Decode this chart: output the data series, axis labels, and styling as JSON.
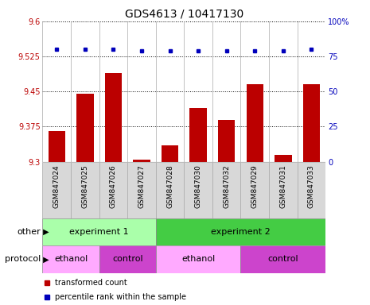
{
  "title": "GDS4613 / 10417130",
  "samples": [
    "GSM847024",
    "GSM847025",
    "GSM847026",
    "GSM847027",
    "GSM847028",
    "GSM847030",
    "GSM847032",
    "GSM847029",
    "GSM847031",
    "GSM847033"
  ],
  "bar_values": [
    9.365,
    9.445,
    9.49,
    9.305,
    9.335,
    9.415,
    9.39,
    9.465,
    9.315,
    9.465
  ],
  "blue_values": [
    80,
    80,
    80,
    79,
    79,
    79,
    79,
    79,
    79,
    80
  ],
  "bar_color": "#bb0000",
  "blue_color": "#0000bb",
  "ymin": 9.3,
  "ymax": 9.6,
  "yticks": [
    9.3,
    9.375,
    9.45,
    9.525,
    9.6
  ],
  "ytick_labels": [
    "9.3",
    "9.375",
    "9.45",
    "9.525",
    "9.6"
  ],
  "y2min": 0,
  "y2max": 100,
  "y2ticks": [
    0,
    25,
    50,
    75,
    100
  ],
  "y2tick_labels": [
    "0",
    "25",
    "50",
    "75",
    "100%"
  ],
  "grid_color": "#000000",
  "other_label": "other",
  "protocol_label": "protocol",
  "experiment1_label": "experiment 1",
  "experiment2_label": "experiment 2",
  "ethanol_label": "ethanol",
  "control_label": "control",
  "experiment1_color": "#aaffaa",
  "experiment2_color": "#44cc44",
  "ethanol1_color": "#ffaaff",
  "control1_color": "#cc44cc",
  "ethanol2_color": "#ffaaff",
  "control2_color": "#cc44cc",
  "legend_red_label": "transformed count",
  "legend_blue_label": "percentile rank within the sample",
  "bar_base": 9.3,
  "title_fontsize": 10,
  "tick_fontsize": 7,
  "sample_fontsize": 6.5,
  "annot_fontsize": 8,
  "bar_width": 0.6,
  "exp1_span": [
    0,
    4
  ],
  "exp2_span": [
    4,
    10
  ],
  "eth1_span": [
    0,
    2
  ],
  "ctl1_span": [
    2,
    4
  ],
  "eth2_span": [
    4,
    7
  ],
  "ctl2_span": [
    7,
    10
  ]
}
